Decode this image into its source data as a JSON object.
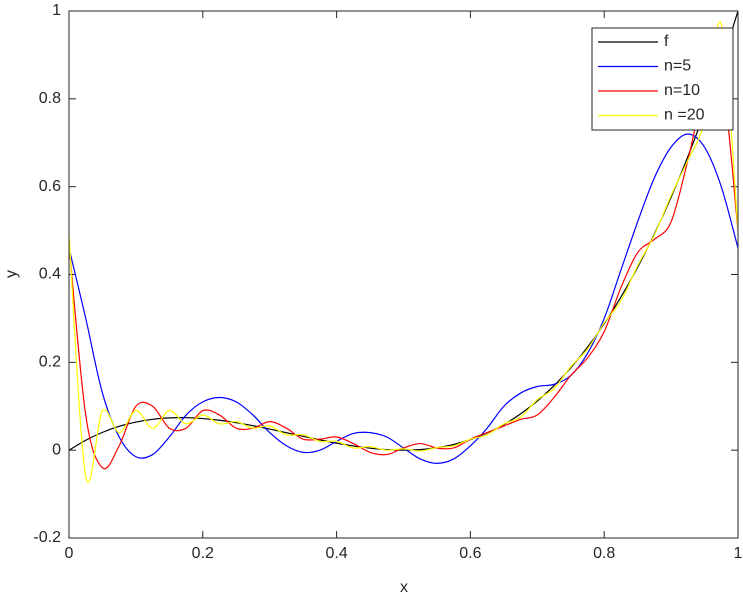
{
  "chart_data": {
    "type": "line",
    "xlabel": "x",
    "ylabel": "y",
    "x": [
      0,
      0.025,
      0.05,
      0.075,
      0.1,
      0.125,
      0.15,
      0.175,
      0.2,
      0.225,
      0.25,
      0.275,
      0.3,
      0.325,
      0.35,
      0.375,
      0.4,
      0.425,
      0.45,
      0.475,
      0.5,
      0.525,
      0.55,
      0.575,
      0.6,
      0.625,
      0.65,
      0.675,
      0.7,
      0.725,
      0.75,
      0.775,
      0.8,
      0.825,
      0.85,
      0.875,
      0.9,
      0.925,
      0.95,
      0.975,
      1
    ],
    "series": [
      {
        "name": "f",
        "color": "#000000",
        "values": [
          0,
          0.0226,
          0.0405,
          0.0542,
          0.064,
          0.0703,
          0.0735,
          0.0739,
          0.072,
          0.0681,
          0.0625,
          0.0557,
          0.048,
          0.0398,
          0.0315,
          0.0234,
          0.016,
          0.0096,
          0.0045,
          0.0012,
          0,
          0.0013,
          0.0055,
          0.0129,
          0.024,
          0.0391,
          0.0585,
          0.0827,
          0.112,
          0.1468,
          0.1875,
          0.2344,
          0.288,
          0.3486,
          0.4165,
          0.4922,
          0.576,
          0.6683,
          0.7695,
          0.8799,
          1
        ]
      },
      {
        "name": "n=5",
        "color": "#0000ff",
        "values": [
          0.46,
          0.3,
          0.13,
          0.03,
          -0.015,
          -0.01,
          0.03,
          0.08,
          0.11,
          0.12,
          0.11,
          0.08,
          0.04,
          0.01,
          -0.005,
          0,
          0.02,
          0.038,
          0.04,
          0.03,
          0.005,
          -0.02,
          -0.03,
          -0.02,
          0.01,
          0.05,
          0.1,
          0.13,
          0.145,
          0.15,
          0.17,
          0.22,
          0.3,
          0.41,
          0.52,
          0.62,
          0.69,
          0.72,
          0.69,
          0.6,
          0.46
        ]
      },
      {
        "name": "n=10",
        "color": "#ff0000",
        "values": [
          0.47,
          0.08,
          -0.04,
          0.01,
          0.1,
          0.1,
          0.05,
          0.05,
          0.09,
          0.08,
          0.05,
          0.05,
          0.065,
          0.05,
          0.025,
          0.025,
          0.03,
          0.015,
          -0.005,
          -0.01,
          0.005,
          0.015,
          0.005,
          0.005,
          0.025,
          0.04,
          0.055,
          0.07,
          0.08,
          0.12,
          0.17,
          0.21,
          0.27,
          0.37,
          0.45,
          0.48,
          0.52,
          0.66,
          0.82,
          0.86,
          0.5
        ]
      },
      {
        "name": "n =20",
        "color": "#ffff00",
        "values": [
          0.49,
          -0.06,
          0.09,
          0.04,
          0.09,
          0.05,
          0.09,
          0.06,
          0.08,
          0.06,
          0.065,
          0.05,
          0.055,
          0.035,
          0.035,
          0.02,
          0.02,
          0.005,
          0.008,
          0,
          0.003,
          -0.002,
          0.006,
          0.01,
          0.025,
          0.035,
          0.06,
          0.075,
          0.115,
          0.14,
          0.19,
          0.23,
          0.29,
          0.34,
          0.42,
          0.49,
          0.58,
          0.66,
          0.75,
          0.97,
          0.5
        ]
      }
    ],
    "xlim": [
      0,
      1
    ],
    "xticks": [
      0,
      0.2,
      0.4,
      0.6,
      0.8,
      1
    ],
    "ylim": [
      -0.2,
      1
    ],
    "yticks": [
      -0.2,
      0,
      0.2,
      0.4,
      0.6,
      0.8,
      1
    ],
    "legend": "top-right",
    "grid": false
  }
}
